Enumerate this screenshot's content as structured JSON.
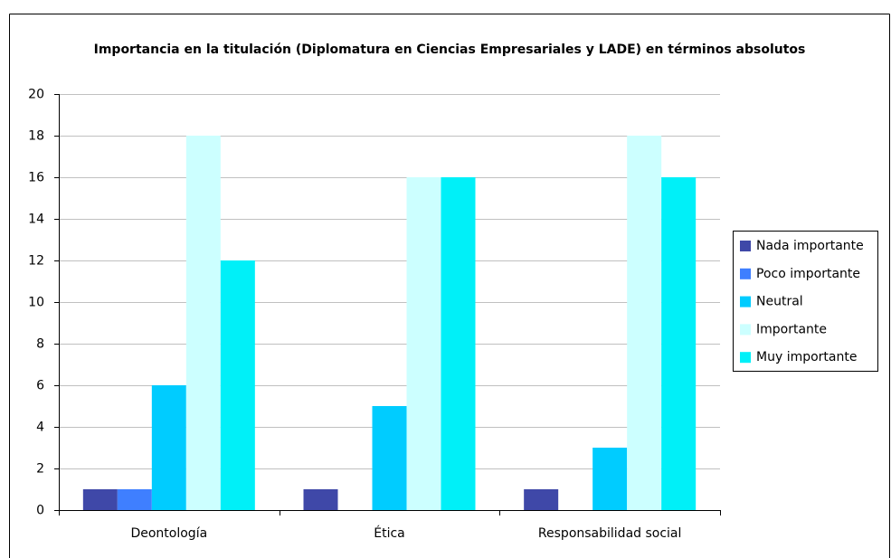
{
  "chart_data": {
    "type": "bar",
    "title": "Importancia en la titulación (Diplomatura en Ciencias Empresariales y LADE) en  términos absolutos",
    "categories": [
      "Deontología",
      "Ética",
      "Responsabilidad social"
    ],
    "series": [
      {
        "name": "Nada importante",
        "color": "#3f48a8",
        "values": [
          1,
          1,
          1
        ]
      },
      {
        "name": "Poco importante",
        "color": "#3f7fff",
        "values": [
          1,
          0,
          0
        ]
      },
      {
        "name": "Neutral",
        "color": "#00ccff",
        "values": [
          6,
          5,
          3
        ]
      },
      {
        "name": "Importante",
        "color": "#ccffff",
        "values": [
          18,
          16,
          18
        ]
      },
      {
        "name": "Muy importante",
        "color": "#00f0f8",
        "values": [
          12,
          16,
          16
        ]
      }
    ],
    "ylim": [
      0,
      20
    ],
    "yticks": [
      0,
      2,
      4,
      6,
      8,
      10,
      12,
      14,
      16,
      18,
      20
    ],
    "grid": true,
    "legend": "right"
  }
}
